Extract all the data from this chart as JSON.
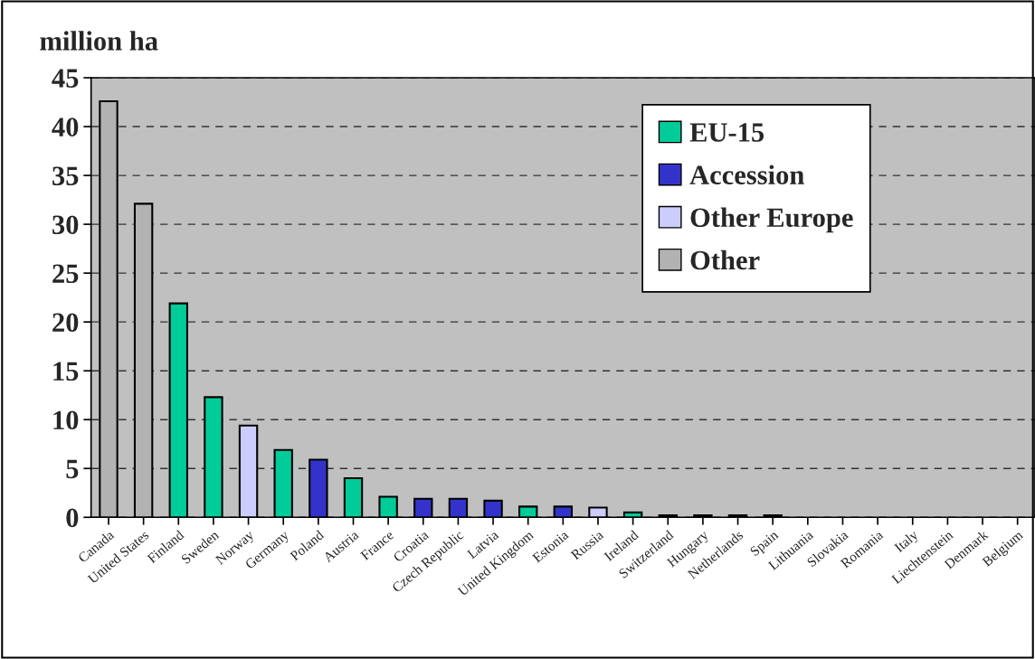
{
  "chart_data": {
    "type": "bar",
    "ylabel": "million ha",
    "categories": [
      "Canada",
      "United States",
      "Finland",
      "Sweden",
      "Norway",
      "Germany",
      "Poland",
      "Austria",
      "France",
      "Croatia",
      "Czech Republic",
      "Latvia",
      "United Kingdom",
      "Estonia",
      "Russia",
      "Ireland",
      "Switzerland",
      "Hungary",
      "Netherlands",
      "Spain",
      "Lithuania",
      "Slovakia",
      "Romania",
      "Italy",
      "Liechtenstein",
      "Denmark",
      "Belgium"
    ],
    "series": [
      {
        "name": "EU-15",
        "color": "#00cc99",
        "values": [
          null,
          null,
          21.9,
          12.3,
          null,
          6.9,
          null,
          4.0,
          2.1,
          null,
          null,
          null,
          1.1,
          null,
          null,
          0.5,
          null,
          null,
          0.2,
          0.2,
          null,
          null,
          null,
          null,
          null,
          null,
          null
        ]
      },
      {
        "name": "Accession",
        "color": "#3333cc",
        "values": [
          null,
          null,
          null,
          null,
          null,
          null,
          5.9,
          null,
          null,
          1.9,
          1.9,
          1.7,
          null,
          1.1,
          null,
          null,
          null,
          0.2,
          null,
          null,
          null,
          null,
          null,
          null,
          null,
          null,
          null
        ]
      },
      {
        "name": "Other Europe",
        "color": "#ccccff",
        "values": [
          null,
          null,
          null,
          null,
          9.4,
          null,
          null,
          null,
          null,
          null,
          null,
          null,
          null,
          null,
          1.0,
          null,
          0.2,
          null,
          null,
          null,
          null,
          null,
          null,
          null,
          null,
          null,
          null
        ]
      },
      {
        "name": "Other",
        "color": "#b2b2b2",
        "values": [
          42.6,
          32.1,
          null,
          null,
          null,
          null,
          null,
          null,
          null,
          null,
          null,
          null,
          null,
          null,
          null,
          null,
          null,
          null,
          null,
          null,
          null,
          null,
          null,
          null,
          null,
          null,
          null
        ]
      }
    ],
    "ylim": [
      0,
      45
    ],
    "yticks": [
      0,
      5,
      10,
      15,
      20,
      25,
      30,
      35,
      40,
      45
    ],
    "grid": "y",
    "legend": "top right"
  }
}
